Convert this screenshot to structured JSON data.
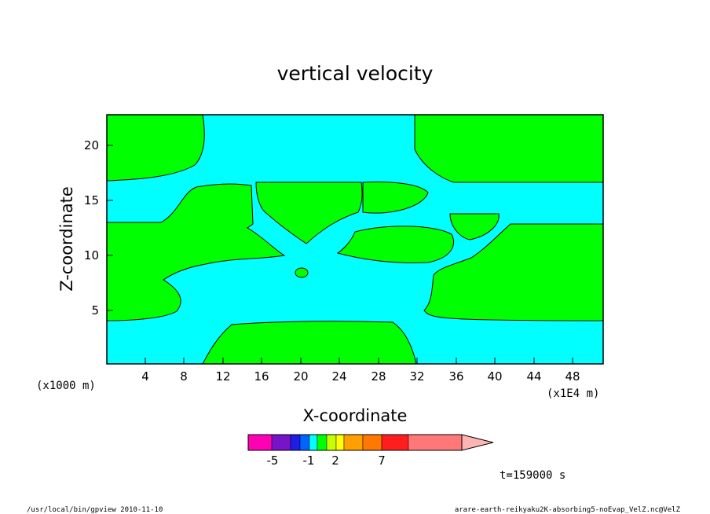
{
  "chart_data": {
    "type": "heatmap",
    "title": "vertical velocity",
    "xlabel": "X-coordinate",
    "ylabel": "Z-coordinate",
    "x_unit": "(x1000 m)",
    "x_scale_note": "(x1E4 m)",
    "x_ticks": [
      "4",
      "8",
      "12",
      "16",
      "20",
      "24",
      "28",
      "32",
      "36",
      "40",
      "44",
      "48"
    ],
    "y_ticks": [
      "5",
      "10",
      "15",
      "20"
    ],
    "xlim": [
      0,
      51.2
    ],
    "ylim": [
      0,
      22.6
    ],
    "grid": false,
    "colors": {
      "updraft": "#00ff00",
      "downdraft": "#00ffff",
      "frame": "#000000"
    },
    "colorbar": {
      "tick_labels": [
        "-5",
        "-1",
        "2",
        "7"
      ],
      "colors": [
        "#ff00b4",
        "#7814c8",
        "#1e1ee6",
        "#0064ff",
        "#00ffff",
        "#00ff00",
        "#c8ff00",
        "#ffff00",
        "#ffa000",
        "#ff7800",
        "#ff1e1e",
        "#ff7878",
        "#ffb4b4"
      ]
    },
    "time_label": "t=159000 s"
  },
  "footer": {
    "left": "/usr/local/bin/gpview  2010-11-10",
    "right": "arare-earth-reikyaku2K-absorbing5-noEvap_VelZ.nc@VelZ"
  }
}
